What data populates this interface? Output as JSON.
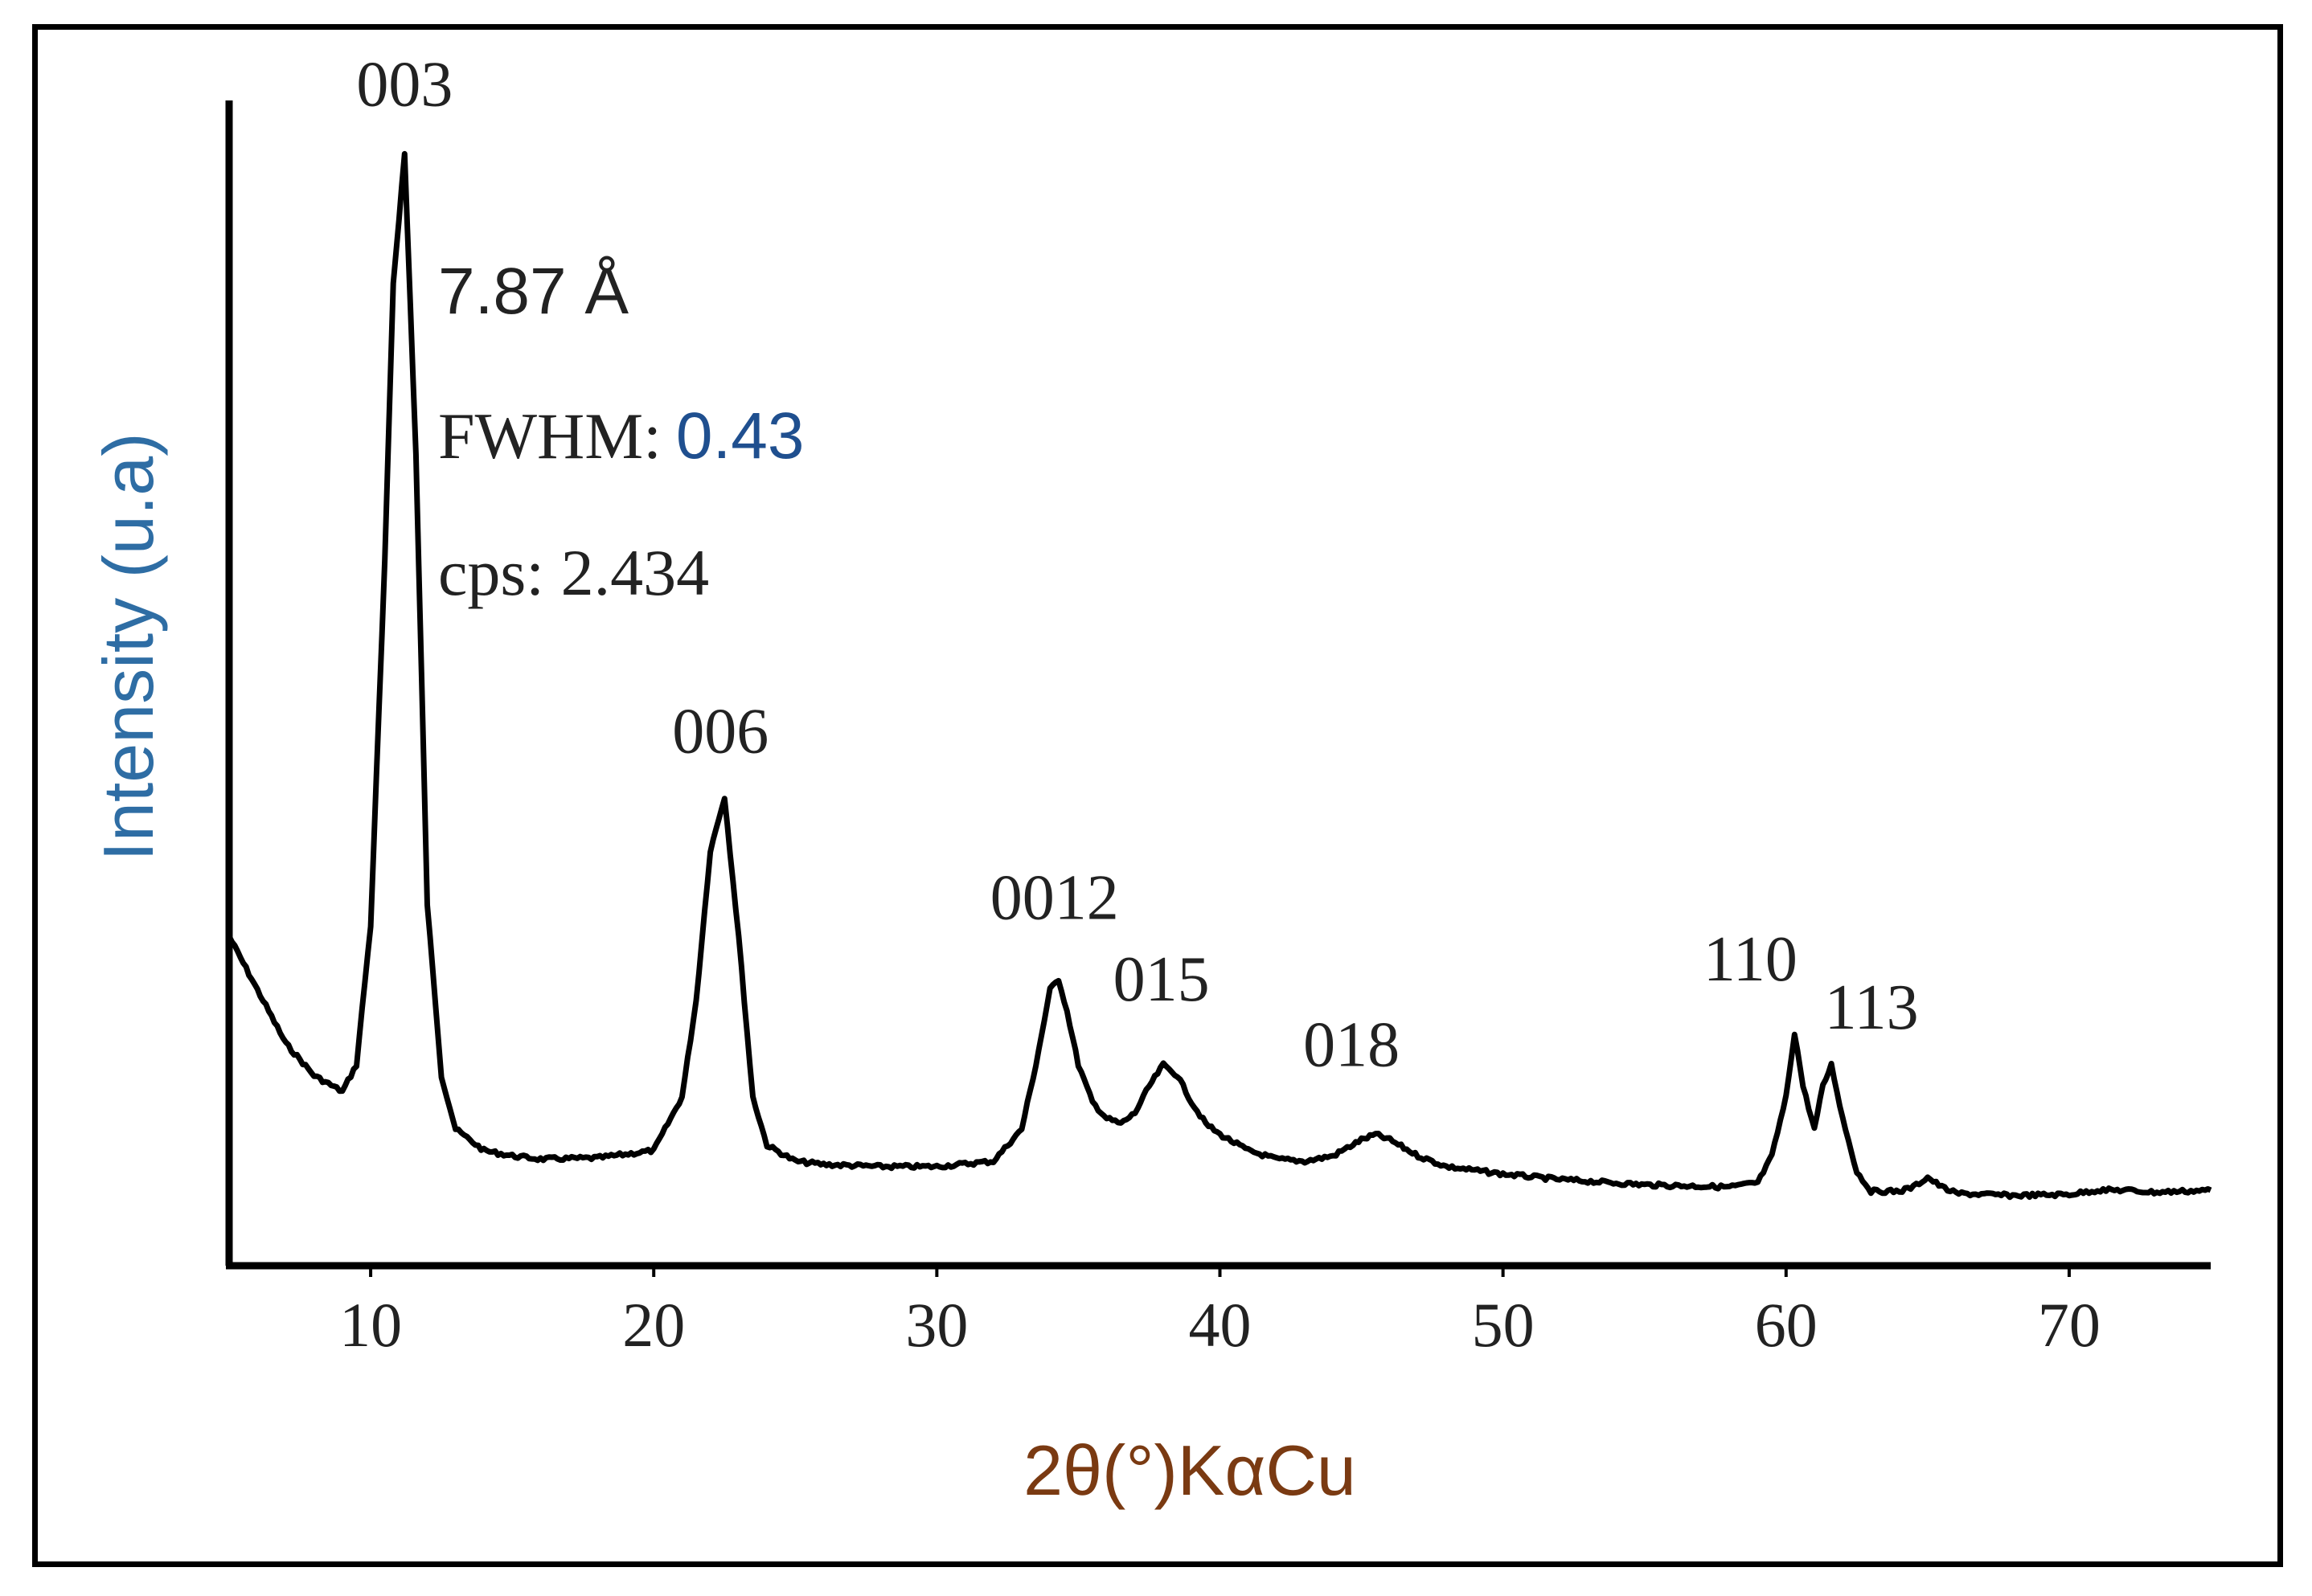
{
  "chart_data": {
    "type": "line",
    "title": "",
    "xlabel": "2θ(°)KαCu",
    "ylabel": "Intensity (u.a)",
    "xlim": [
      5,
      75
    ],
    "x_ticks": [
      10,
      20,
      30,
      40,
      50,
      60,
      70
    ],
    "y_ticks": [],
    "grid": false,
    "line_color": "#000000",
    "axis_title_color_x": "#7a3a12",
    "axis_title_color_y": "#2e6da4",
    "series": [
      {
        "name": "",
        "x": [
          5,
          6,
          7,
          8,
          9,
          9.5,
          10,
          10.5,
          10.8,
          11.2,
          11.6,
          12,
          12.5,
          13,
          14,
          15,
          16,
          18,
          20,
          21,
          21.5,
          22,
          22.5,
          23,
          23.5,
          24,
          25,
          26,
          28,
          30,
          32,
          33,
          33.5,
          34,
          34.3,
          34.6,
          35,
          35.5,
          36,
          36.5,
          37,
          37.5,
          38,
          38.5,
          39,
          39.5,
          40,
          41,
          42,
          43,
          44,
          45,
          45.5,
          46,
          47,
          48,
          50,
          52,
          55,
          58,
          59,
          59.5,
          60,
          60.3,
          60.6,
          61,
          61.3,
          61.6,
          62,
          62.5,
          63,
          64,
          64.5,
          65,
          65.5,
          66,
          68,
          70,
          71,
          72,
          73,
          74,
          75
        ],
        "y": [
          27,
          22,
          17,
          14,
          12.5,
          15,
          28,
          62,
          88,
          100,
          72,
          30,
          14,
          9,
          7,
          6.5,
          6.2,
          6.3,
          7,
          12,
          21,
          35,
          40,
          27,
          12,
          7.5,
          6,
          5.7,
          5.5,
          5.5,
          6,
          9,
          15,
          22,
          23,
          20,
          15,
          11.5,
          10,
          9.5,
          10.5,
          13,
          15,
          14,
          11.5,
          9.5,
          8.5,
          7,
          6.2,
          6,
          6.5,
          8,
          8.5,
          8,
          6.5,
          5.5,
          4.8,
          4.3,
          3.8,
          3.6,
          4,
          6.5,
          12,
          18,
          13,
          9,
          13,
          15,
          10,
          5,
          3.2,
          3.2,
          3.6,
          4.5,
          3.6,
          3,
          2.8,
          2.9,
          3.3,
          3.3,
          3.1,
          3.2,
          3.3
        ]
      }
    ],
    "peak_labels": [
      {
        "text": "003",
        "x": 11.2,
        "y": 100
      },
      {
        "text": "006",
        "x": 22.5,
        "y": 40
      },
      {
        "text": "0012",
        "x": 34.3,
        "y": 23
      },
      {
        "text": "015",
        "x": 38.5,
        "y": 15
      },
      {
        "text": "018",
        "x": 45.5,
        "y": 8.5
      },
      {
        "text": "110",
        "x": 60.3,
        "y": 18
      },
      {
        "text": "113",
        "x": 61.6,
        "y": 15
      }
    ],
    "annotations": {
      "d_spacing": "7.87 Å",
      "fwhm_label": "FWHM:",
      "fwhm_value": "0.43",
      "cps": "cps: 2.434"
    }
  }
}
